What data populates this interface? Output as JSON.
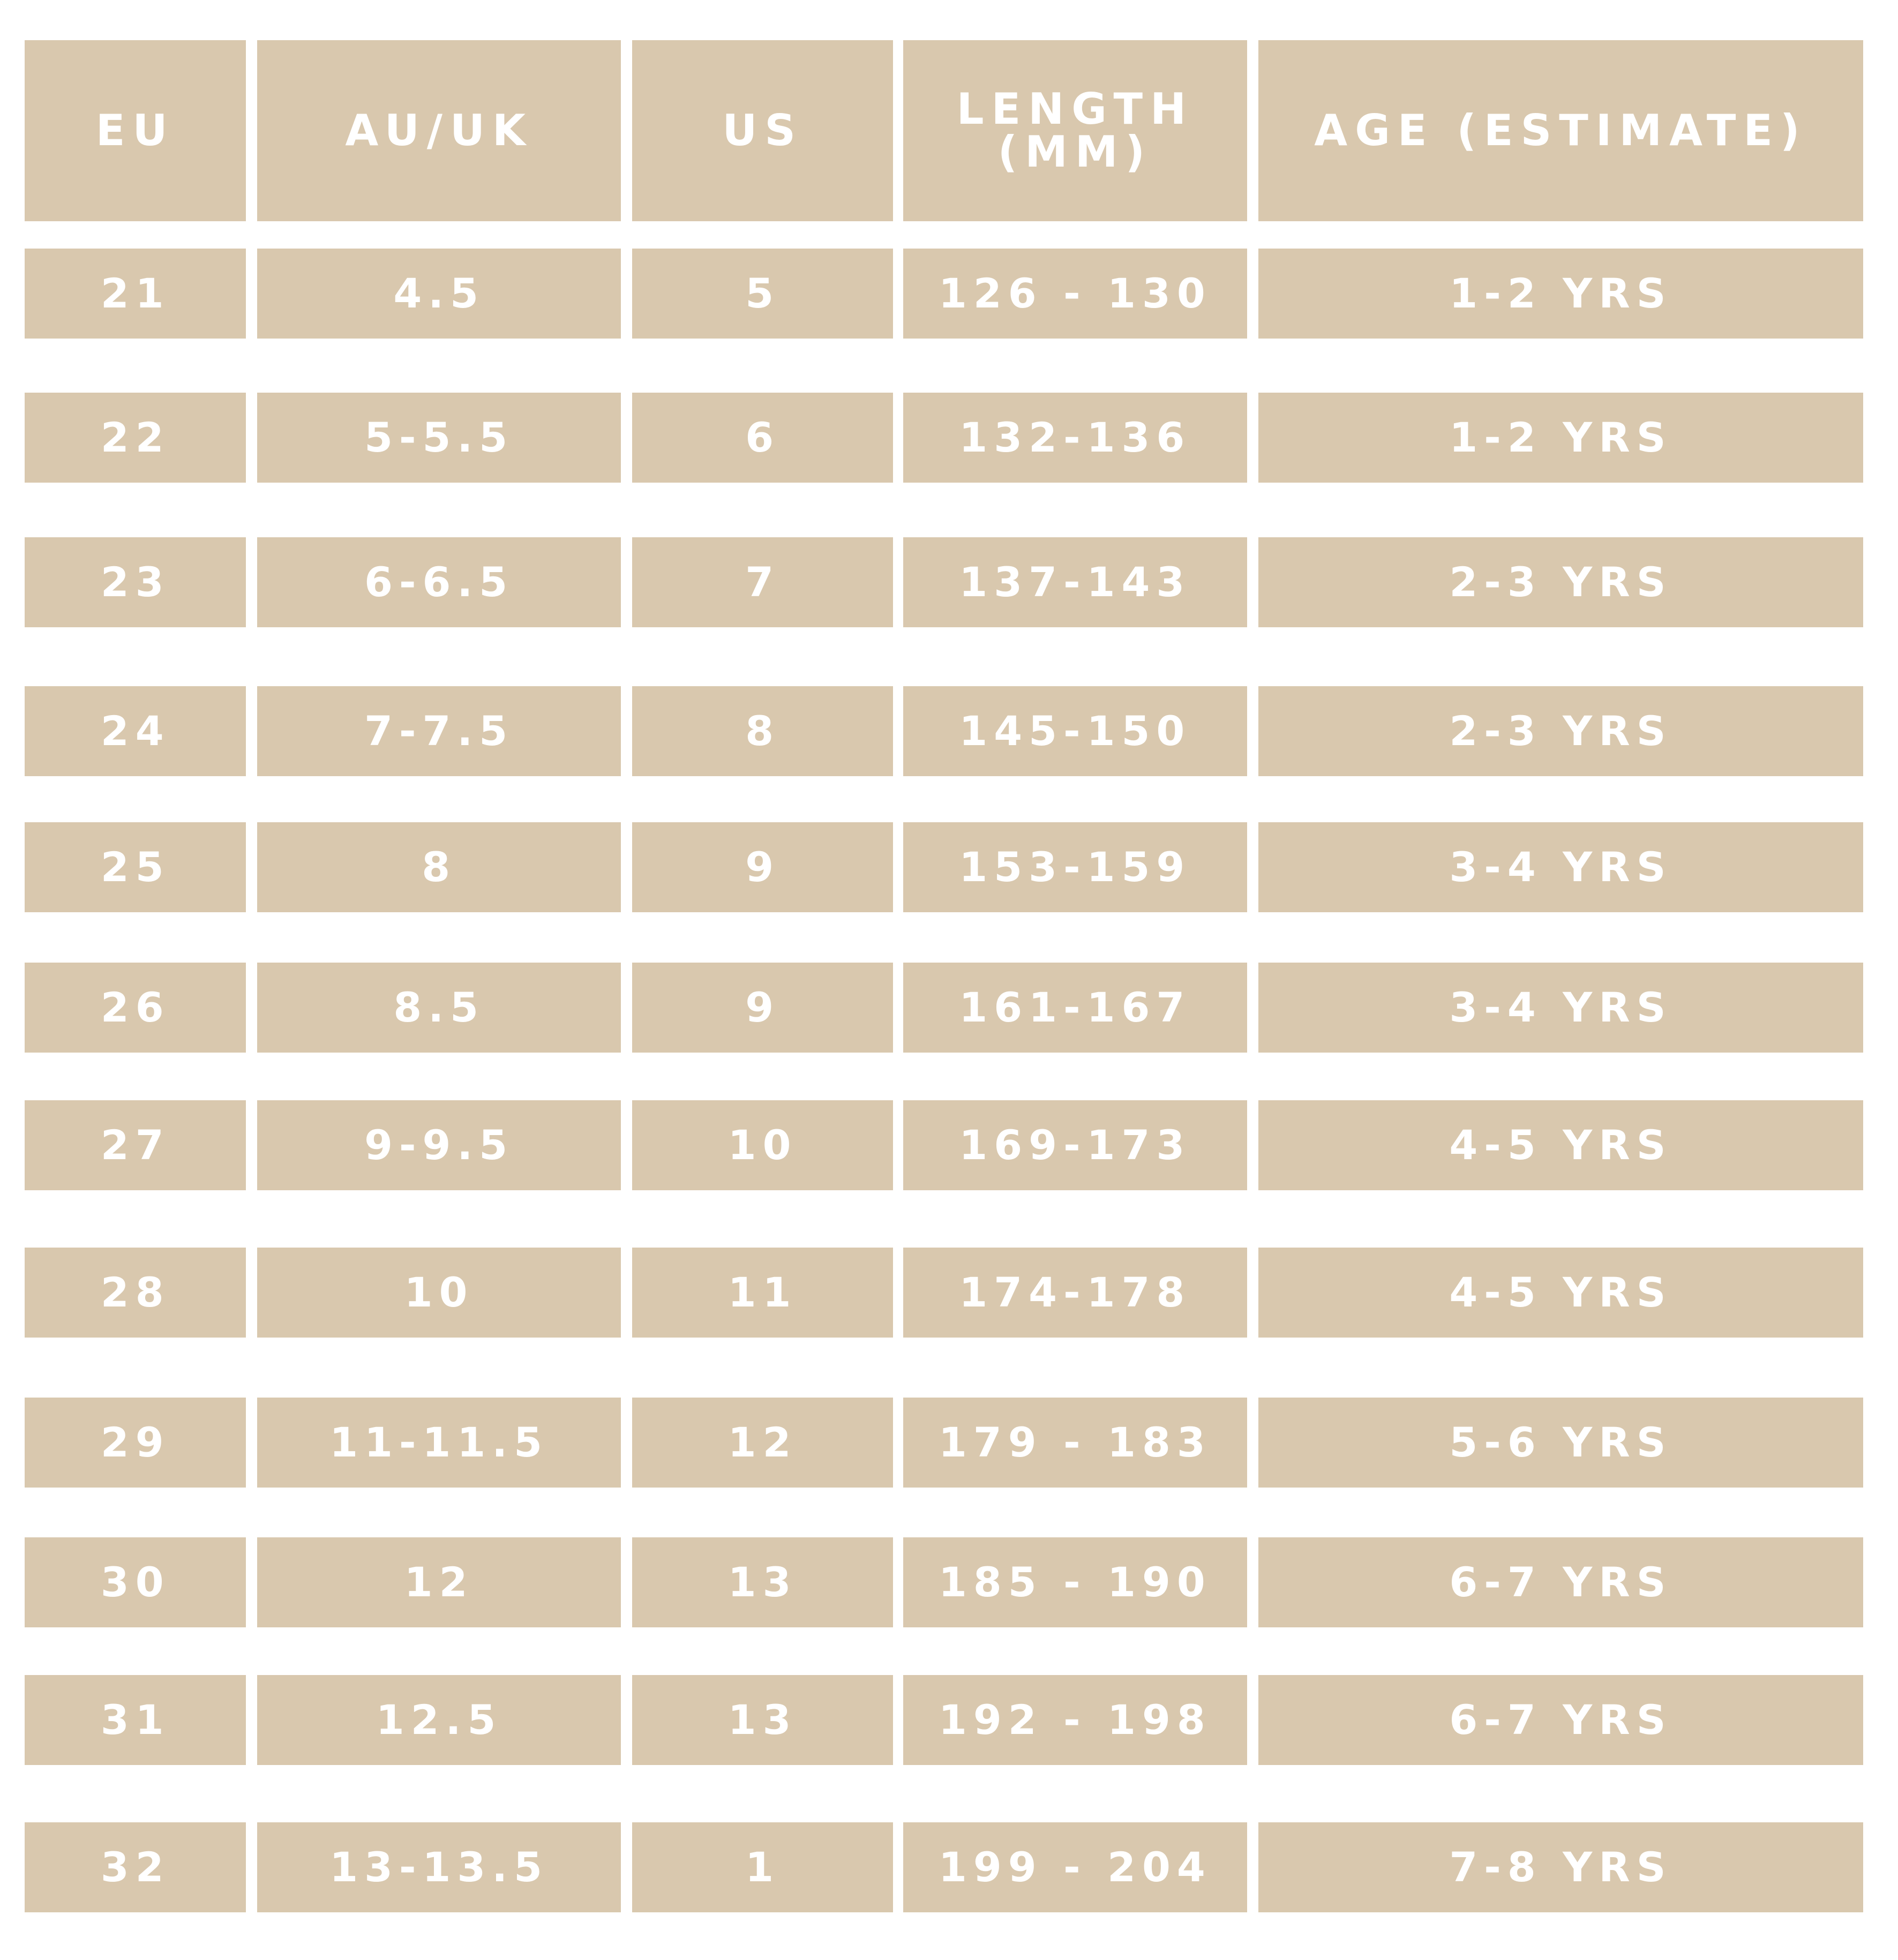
{
  "table": {
    "header": [
      "EU",
      "AU/UK",
      "US",
      "LENGTH (MM)",
      "AGE (ESTIMATE)"
    ],
    "rows": [
      [
        "21",
        "4.5",
        "5",
        "126 - 130",
        "1-2 YRS"
      ],
      [
        "22",
        "5-5.5",
        "6",
        "132-136",
        "1-2 YRS"
      ],
      [
        "23",
        "6-6.5",
        "7",
        "137-143",
        "2-3 YRS"
      ],
      [
        "24",
        "7-7.5",
        "8",
        "145-150",
        "2-3 YRS"
      ],
      [
        "25",
        "8",
        "9",
        "153-159",
        "3-4 YRS"
      ],
      [
        "26",
        "8.5",
        "9",
        "161-167",
        "3-4 YRS"
      ],
      [
        "27",
        "9-9.5",
        "10",
        "169-173",
        "4-5 YRS"
      ],
      [
        "28",
        "10",
        "11",
        "174-178",
        "4-5 YRS"
      ],
      [
        "29",
        "11-11.5",
        "12",
        "179 - 183",
        "5-6 YRS"
      ],
      [
        "30",
        "12",
        "13",
        "185 - 190",
        "6-7 YRS"
      ],
      [
        "31",
        "12.5",
        "13",
        "192 - 198",
        "6-7 YRS"
      ],
      [
        "32",
        "13-13.5",
        "1",
        "199 - 204",
        "7-8 YRS"
      ]
    ]
  }
}
